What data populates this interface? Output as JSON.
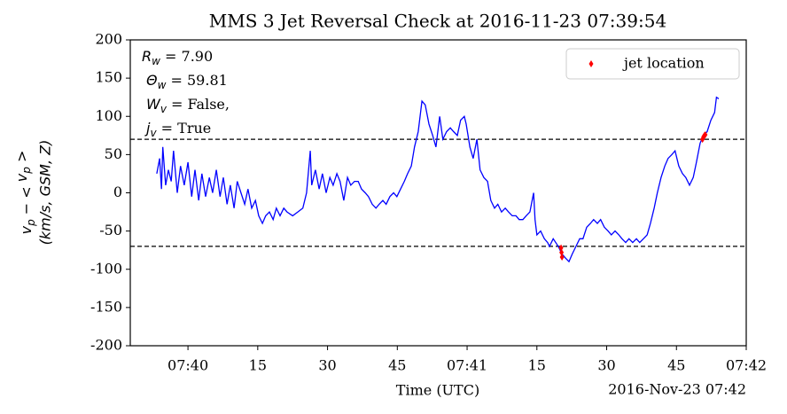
{
  "chart_data": {
    "type": "line",
    "title": "MMS 3 Jet Reversal Check at 2016-11-23 07:39:54",
    "xlabel": "Time (UTC)",
    "x_offset_label": "2016-Nov-23 07:42",
    "ylabel": {
      "line1": [
        "v",
        "p",
        " − < ",
        "v",
        "p",
        " >"
      ],
      "line2": "(km/s, GSM, Z)"
    },
    "annotations": [
      {
        "symbol": "R",
        "sub": "w",
        "text": " = 7.90"
      },
      {
        "symbol": "Θ",
        "sub": "w",
        "text": " = 59.81"
      },
      {
        "symbol": "W",
        "sub": "v",
        "text": " = False,"
      },
      {
        "symbol": "j",
        "sub": "v",
        "text": " = True"
      }
    ],
    "xlim": [
      47.6,
      180
    ],
    "xticks": [
      {
        "value": 60,
        "label": "07:40"
      },
      {
        "value": 75,
        "label": "15"
      },
      {
        "value": 90,
        "label": "30"
      },
      {
        "value": 105,
        "label": "45"
      },
      {
        "value": 120,
        "label": "07:41"
      },
      {
        "value": 135,
        "label": "15"
      },
      {
        "value": 150,
        "label": "30"
      },
      {
        "value": 165,
        "label": "45"
      },
      {
        "value": 180,
        "label": "07:42"
      }
    ],
    "ylim": [
      -200,
      200
    ],
    "yticks": [
      -200,
      -150,
      -100,
      -50,
      0,
      50,
      100,
      150,
      200
    ],
    "hlines": [
      70,
      -70
    ],
    "legend": "upper right",
    "series": [
      {
        "type": "line",
        "color": "#0000ff",
        "x": [
          53.3,
          53.9,
          54.3,
          54.6,
          55.2,
          55.8,
          56.4,
          56.9,
          57.7,
          58.4,
          59.2,
          60.0,
          60.8,
          61.5,
          62.3,
          63.0,
          63.8,
          64.6,
          65.3,
          66.1,
          66.9,
          67.6,
          68.4,
          69.1,
          69.9,
          70.6,
          71.4,
          72.2,
          72.9,
          73.7,
          74.5,
          75.2,
          76.0,
          76.7,
          77.5,
          78.3,
          79.0,
          79.8,
          80.6,
          81.3,
          82.5,
          83.6,
          84.7,
          85.5,
          86.3,
          86.6,
          87.4,
          88.2,
          88.9,
          89.7,
          90.5,
          91.2,
          92.0,
          92.7,
          93.5,
          94.3,
          95.0,
          95.8,
          96.6,
          97.3,
          98.1,
          98.8,
          99.6,
          100.4,
          101.1,
          101.9,
          102.6,
          103.4,
          104.2,
          104.9,
          105.7,
          106.5,
          107.2,
          108.0,
          108.7,
          109.5,
          110.3,
          111.0,
          111.8,
          112.6,
          113.3,
          114.1,
          114.8,
          115.6,
          116.4,
          117.1,
          117.9,
          118.6,
          119.4,
          119.8,
          120.6,
          121.3,
          122.1,
          122.8,
          123.6,
          124.4,
          125.1,
          125.9,
          126.6,
          127.4,
          128.2,
          128.9,
          129.7,
          130.5,
          131.2,
          132.0,
          132.7,
          133.5,
          134.3,
          134.6,
          135.0,
          135.8,
          136.6,
          137.3,
          137.7,
          138.5,
          139.6,
          140.4,
          141.1,
          141.9,
          142.6,
          143.4,
          144.2,
          144.9,
          145.7,
          146.5,
          147.2,
          148.0,
          148.7,
          149.5,
          150.3,
          151.0,
          151.8,
          152.6,
          153.3,
          154.1,
          154.8,
          155.6,
          156.4,
          157.1,
          157.9,
          158.7,
          159.4,
          160.2,
          160.9,
          161.7,
          162.5,
          163.2,
          164.0,
          164.7,
          165.5,
          166.3,
          167.0,
          167.8,
          168.6,
          169.3,
          170.1,
          170.8,
          171.6,
          172.4,
          173.2,
          173.6,
          174.1
        ],
        "values": [
          25,
          45,
          5,
          60,
          10,
          30,
          15,
          55,
          0,
          35,
          10,
          40,
          -5,
          30,
          -10,
          25,
          -5,
          20,
          0,
          30,
          -5,
          20,
          -15,
          10,
          -20,
          15,
          0,
          -15,
          5,
          -20,
          -10,
          -30,
          -40,
          -30,
          -25,
          -35,
          -20,
          -30,
          -20,
          -25,
          -30,
          -25,
          -20,
          0,
          55,
          10,
          30,
          5,
          25,
          0,
          20,
          10,
          25,
          15,
          -10,
          20,
          10,
          15,
          15,
          5,
          0,
          -5,
          -15,
          -20,
          -15,
          -10,
          -15,
          -5,
          0,
          -5,
          5,
          15,
          25,
          35,
          60,
          80,
          120,
          115,
          90,
          75,
          60,
          100,
          70,
          80,
          85,
          80,
          75,
          95,
          100,
          90,
          60,
          45,
          70,
          30,
          20,
          15,
          -10,
          -20,
          -15,
          -25,
          -20,
          -25,
          -30,
          -30,
          -35,
          -35,
          -30,
          -25,
          0,
          -35,
          -55,
          -50,
          -60,
          -65,
          -70,
          -60,
          -70,
          -80,
          -85,
          -90,
          -80,
          -70,
          -60,
          -60,
          -45,
          -40,
          -35,
          -40,
          -35,
          -45,
          -50,
          -55,
          -50,
          -55,
          -60,
          -65,
          -60,
          -65,
          -60,
          -65,
          -60,
          -55,
          -40,
          -20,
          0,
          20,
          35,
          45,
          50,
          55,
          35,
          25,
          20,
          10,
          20,
          40,
          65,
          75,
          80,
          95,
          105,
          125,
          123
        ]
      },
      {
        "type": "scatter",
        "name": "jet location",
        "color": "#ff0000",
        "marker": "diamond",
        "x": [
          140.2,
          140.3,
          140.4,
          170.6,
          170.8,
          171.0,
          171.2
        ],
        "values": [
          -72,
          -78,
          -84,
          70,
          73,
          75,
          76
        ]
      }
    ]
  }
}
